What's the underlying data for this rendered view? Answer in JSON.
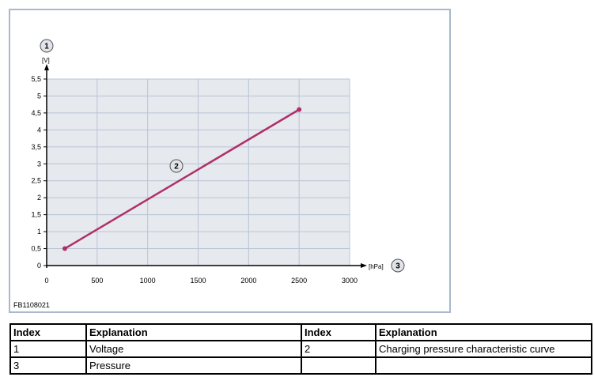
{
  "chart_data": {
    "type": "line",
    "figure_id": "FB1108021",
    "y_unit": "[V]",
    "x_unit": "[hPa]",
    "xlim": [
      0,
      3000
    ],
    "ylim": [
      0,
      5.5
    ],
    "grid": true,
    "x_ticks": [
      "0",
      "500",
      "1000",
      "1500",
      "2000",
      "2500",
      "3000"
    ],
    "y_ticks": [
      "0",
      "0,5",
      "1",
      "1,5",
      "2",
      "2,5",
      "3",
      "3,5",
      "4",
      "4,5",
      "5",
      "5,5"
    ],
    "series": [
      {
        "x": [
          180,
          2500
        ],
        "y": [
          0.5,
          4.6
        ],
        "color": "#b0306a"
      }
    ],
    "callouts": {
      "voltage_axis": "1",
      "curve": "2",
      "pressure_axis": "3"
    }
  },
  "legend_table": {
    "headers": [
      "Index",
      "Explanation",
      "Index",
      "Explanation"
    ],
    "rows": [
      [
        "1",
        "Voltage",
        "2",
        "Charging pressure characteristic curve"
      ],
      [
        "3",
        "Pressure",
        "",
        ""
      ]
    ]
  },
  "colors": {
    "plot_background": "#e6e9ee",
    "grid": "#b9c4d6",
    "frame_border": "#a9b8cc",
    "curve": "#b0306a",
    "callout_fill": "#e1e4e8"
  }
}
